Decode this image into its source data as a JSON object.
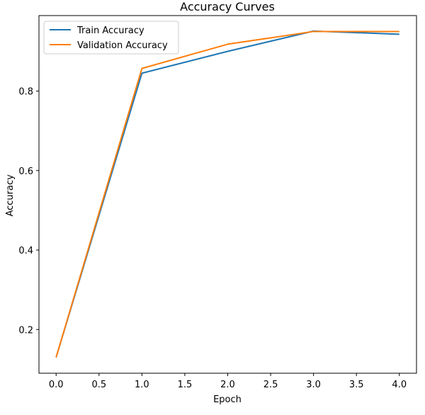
{
  "chart_data": {
    "type": "line",
    "title": "Accuracy Curves",
    "xlabel": "Epoch",
    "ylabel": "Accuracy",
    "x": [
      0,
      1,
      2,
      3,
      4
    ],
    "xlim": [
      -0.2,
      4.2
    ],
    "ylim": [
      0.09,
      0.99
    ],
    "xticks": [
      0.0,
      0.5,
      1.0,
      1.5,
      2.0,
      2.5,
      3.0,
      3.5,
      4.0
    ],
    "xtick_labels": [
      "0.0",
      "0.5",
      "1.0",
      "1.5",
      "2.0",
      "2.5",
      "3.0",
      "3.5",
      "4.0"
    ],
    "yticks": [
      0.2,
      0.4,
      0.6,
      0.8
    ],
    "ytick_labels": [
      "0.2",
      "0.4",
      "0.6",
      "0.8"
    ],
    "grid": false,
    "legend_position": "top-left",
    "series": [
      {
        "name": "Train Accuracy",
        "color": "#1f77b4",
        "values": [
          0.13,
          0.845,
          0.9,
          0.951,
          0.943
        ]
      },
      {
        "name": "Validation Accuracy",
        "color": "#ff7f0e",
        "values": [
          0.13,
          0.857,
          0.918,
          0.95,
          0.95
        ]
      }
    ]
  }
}
